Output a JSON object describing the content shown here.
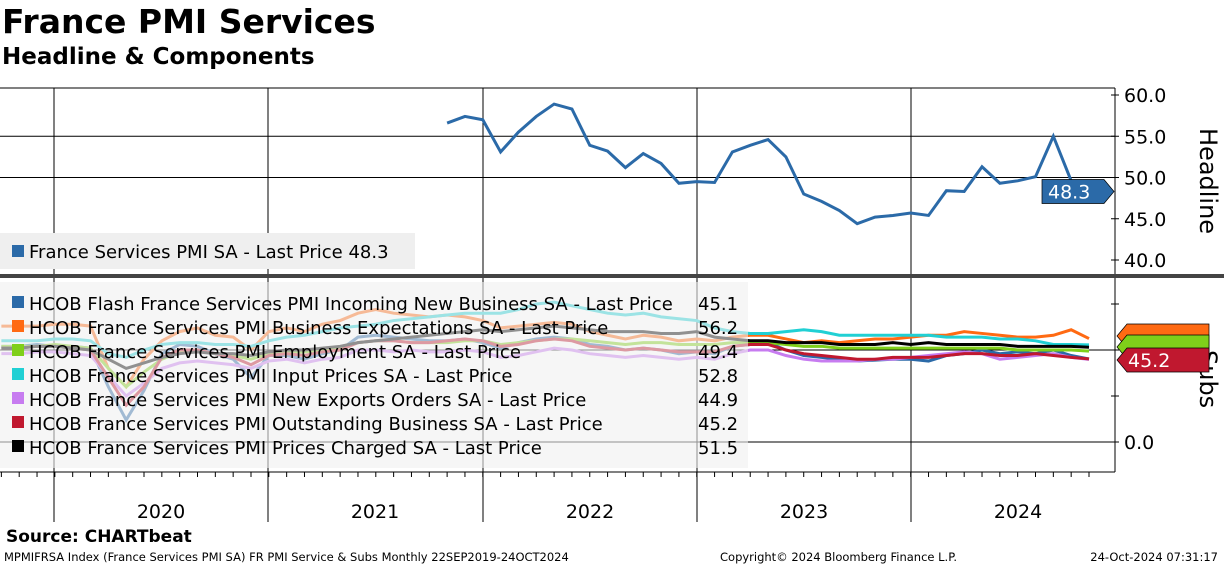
{
  "title": "France PMI Services",
  "subtitle": "Headline & Components",
  "source": "Source: CHARTbeat",
  "footer": {
    "left": "MPMIFRSA Index (France Services PMI SA) FR PMI Service & Subs  Monthly 22SEP2019-24OCT2024",
    "center": "Copyright© 2024 Bloomberg Finance L.P.",
    "right": "24-Oct-2024 07:31:17"
  },
  "chart_data": [
    {
      "type": "line",
      "panel": "Headline",
      "ylabel": "Headline",
      "ylim": [
        38,
        62
      ],
      "yticks": [
        "60.0",
        "55.0",
        "50.0",
        "45.0",
        "40.0"
      ],
      "x_start": "2021-10",
      "legend": "France Services PMI SA - Last Price 48.3",
      "last_label": "48.3",
      "series": [
        {
          "name": "France Services PMI SA",
          "color": "#2b6aa8",
          "values": [
            56.6,
            57.4,
            57.0,
            53.1,
            55.5,
            57.4,
            58.9,
            58.3,
            53.9,
            53.2,
            51.2,
            52.9,
            51.7,
            49.3,
            49.5,
            49.4,
            53.1,
            53.9,
            54.6,
            52.5,
            48.0,
            47.1,
            46.0,
            44.4,
            45.2,
            45.4,
            45.7,
            45.4,
            48.4,
            48.3,
            51.3,
            49.3,
            49.6,
            50.1,
            55.0,
            49.6,
            48.3
          ]
        }
      ]
    },
    {
      "type": "line",
      "panel": "Subs",
      "ylabel": "Subs",
      "yticks": [
        "0.0"
      ],
      "x_start": "2019-09",
      "xticks": [
        "2020",
        "2021",
        "2022",
        "2023",
        "2024"
      ],
      "last_label": "45.2",
      "series": [
        {
          "name": "HCOB Flash France Services PMI Incoming New Business SA - Last Price",
          "last": "45.1",
          "color": "#2b6aa8",
          "values": [
            52,
            52,
            53,
            52,
            52,
            51,
            30,
            12,
            28,
            48,
            53,
            52,
            48,
            45,
            35,
            47,
            47,
            45,
            48,
            50,
            57,
            58,
            57,
            56,
            55,
            55,
            56,
            54,
            51,
            54,
            56,
            57,
            56,
            53,
            52,
            50,
            51,
            50,
            48,
            49,
            48,
            52,
            53,
            54,
            50,
            47,
            46,
            45,
            44,
            44.5,
            45,
            45,
            44,
            47,
            48,
            50,
            48,
            49,
            48,
            50,
            47,
            45.1
          ]
        },
        {
          "name": "HCOB France Services PMI Business Expectations SA - Last Price",
          "last": "56.2",
          "color": "#ff6a13",
          "values": [
            63,
            63,
            63,
            64,
            64,
            63,
            40,
            30,
            45,
            55,
            60,
            62,
            58,
            57,
            50,
            60,
            62,
            60,
            64,
            66,
            70,
            72,
            70,
            69,
            68,
            69,
            68,
            66,
            62,
            63,
            64,
            65,
            64,
            60,
            58,
            56,
            58,
            57,
            55,
            56,
            55,
            57,
            58,
            58,
            56,
            54,
            55,
            54,
            55,
            56,
            56,
            57,
            58,
            58,
            60,
            59,
            58,
            57,
            57,
            58,
            61,
            56.2
          ]
        },
        {
          "name": "HCOB France Services PMI Employment SA - Last Price",
          "last": "49.4",
          "color": "#7fcf1a",
          "values": [
            52,
            52,
            52,
            53,
            52,
            51,
            40,
            30,
            38,
            45,
            49,
            50,
            48,
            47,
            45,
            48,
            49,
            49,
            50,
            51,
            54,
            55,
            55,
            54,
            54,
            54,
            55,
            55,
            53,
            54,
            55,
            56,
            56,
            55,
            54,
            53,
            54,
            54,
            53,
            53,
            53,
            54,
            54,
            54,
            53,
            52,
            52,
            51,
            51,
            51,
            51,
            51,
            51,
            51,
            51,
            51,
            51,
            50,
            50,
            50,
            50,
            49.4
          ]
        },
        {
          "name": "HCOB France Services PMI Input Prices SA - Last Price",
          "last": "52.8",
          "color": "#20d0d4",
          "values": [
            55,
            55,
            55,
            56,
            56,
            55,
            48,
            46,
            50,
            53,
            54,
            54,
            53,
            53,
            52,
            55,
            57,
            58,
            60,
            62,
            63,
            64,
            66,
            67,
            68,
            69,
            70,
            70,
            70,
            72,
            75,
            76,
            74,
            72,
            70,
            69,
            70,
            68,
            67,
            66,
            62,
            60,
            59,
            59,
            60,
            61,
            60,
            58,
            58,
            58,
            58,
            58,
            58,
            57,
            57,
            57,
            56,
            56,
            55,
            53,
            53,
            52.8
          ]
        },
        {
          "name": "HCOB France Services PMI New Exports Orders SA - Last Price",
          "last": "44.9",
          "color": "#c77cf0",
          "values": [
            48,
            48,
            49,
            49,
            48,
            47,
            36,
            25,
            32,
            40,
            43,
            44,
            43,
            42,
            40,
            44,
            45,
            43,
            45,
            46,
            50,
            50,
            49,
            50,
            49,
            49,
            50,
            49,
            46,
            47,
            49,
            51,
            50,
            48,
            47,
            46,
            47,
            46,
            45,
            46,
            45,
            48,
            50,
            50,
            47,
            45,
            44,
            44,
            44,
            45,
            45,
            46,
            47,
            48,
            49,
            48,
            45,
            46,
            47,
            48,
            46,
            44.9
          ]
        },
        {
          "name": "HCOB France Services PMI Outstanding Business SA - Last Price",
          "last": "45.2",
          "color": "#c0182f",
          "values": [
            51,
            51,
            52,
            52,
            51,
            50,
            35,
            20,
            30,
            46,
            50,
            50,
            48,
            46,
            42,
            47,
            48,
            47,
            49,
            50,
            54,
            55,
            55,
            54,
            54,
            55,
            56,
            55,
            52,
            53,
            55,
            56,
            55,
            52,
            51,
            50,
            51,
            50,
            49,
            49,
            49,
            52,
            53,
            53,
            50,
            48,
            47,
            46,
            45,
            45,
            46,
            46,
            46,
            47,
            48,
            48,
            47,
            47,
            48,
            47,
            46,
            45.2
          ]
        },
        {
          "name": "HCOB France Services PMI Prices Charged SA - Last Price",
          "last": "51.5",
          "color": "#000000",
          "values": [
            51,
            51,
            52,
            52,
            51,
            50,
            45,
            40,
            43,
            46,
            48,
            49,
            48,
            48,
            47,
            49,
            50,
            50,
            51,
            52,
            54,
            55,
            56,
            57,
            58,
            59,
            60,
            61,
            60,
            61,
            62,
            63,
            62,
            61,
            60,
            60,
            60,
            59,
            59,
            60,
            57,
            56,
            55,
            55,
            54,
            54,
            54,
            53,
            53,
            53,
            54,
            53,
            54,
            53,
            53,
            53,
            53,
            52,
            52,
            52,
            52,
            51.5
          ]
        }
      ]
    }
  ]
}
